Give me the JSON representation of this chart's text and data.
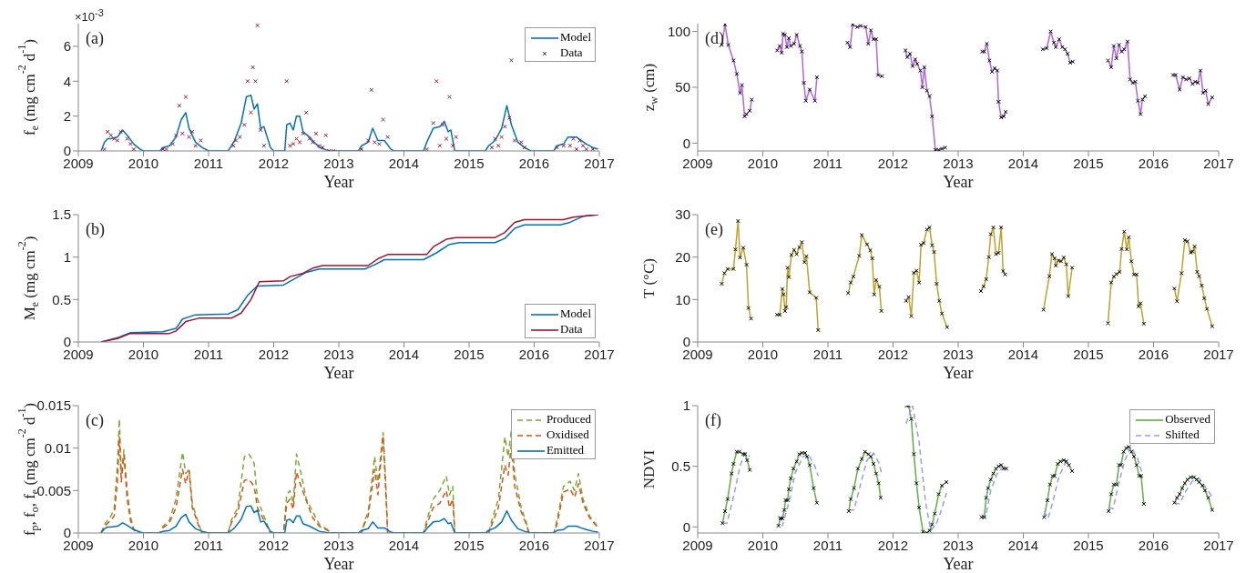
{
  "chart_data": [
    {
      "type": "line",
      "xlabel": "Year",
      "ylabel": "f$_{e}$ (mg cm$^{-2}$ d$^{-1}$)",
      "annotations": [
        "(a)",
        "×10$^{-3}$"
      ],
      "xlim": [
        2009,
        2017
      ],
      "xticks": [
        2009,
        2010,
        2011,
        2012,
        2013,
        2014,
        2015,
        2016,
        2017
      ],
      "ylim": [
        0,
        7.3
      ],
      "yticks": [
        0,
        2,
        4,
        6
      ],
      "legend": "top right",
      "series": [
        {
          "name": "Model",
          "color": "#0072bd",
          "x": [
            2009.35,
            2009.4,
            2009.45,
            2009.5,
            2009.6,
            2009.68,
            2009.75,
            2009.85,
            2009.95,
            2010.0,
            2010.25,
            2010.3,
            2010.4,
            2010.5,
            2010.58,
            2010.65,
            2010.7,
            2010.8,
            2010.9,
            2011.0,
            2011.3,
            2011.4,
            2011.5,
            2011.58,
            2011.65,
            2011.7,
            2011.75,
            2011.8,
            2011.85,
            2011.95,
            2012.0,
            2012.17,
            2012.2,
            2012.25,
            2012.3,
            2012.35,
            2012.4,
            2012.45,
            2012.55,
            2012.7,
            2012.85,
            2013.3,
            2013.35,
            2013.45,
            2013.52,
            2013.6,
            2013.7,
            2013.8,
            2013.85,
            2014.3,
            2014.35,
            2014.45,
            2014.55,
            2014.62,
            2014.68,
            2014.72,
            2014.78,
            2015.25,
            2015.3,
            2015.4,
            2015.5,
            2015.58,
            2015.65,
            2015.75,
            2015.85,
            2015.95,
            2016.3,
            2016.35,
            2016.45,
            2016.52,
            2016.65,
            2016.72,
            2016.8,
            2016.9,
            2016.98
          ],
          "values": [
            0,
            0.5,
            0.7,
            0.7,
            0.8,
            1.2,
            0.9,
            0.4,
            0.1,
            0,
            0,
            0.2,
            0.3,
            0.8,
            1.8,
            2.2,
            1.3,
            0.5,
            0.2,
            0,
            0,
            0.6,
            1.6,
            3.1,
            3.2,
            2.4,
            2.7,
            1.3,
            1.4,
            0.2,
            0,
            0,
            1.5,
            1.6,
            1.2,
            2,
            2,
            1.1,
            0.8,
            0.2,
            0,
            0,
            0.3,
            0.5,
            1.3,
            0.6,
            0.6,
            0.1,
            0,
            0,
            0.5,
            1.3,
            1.4,
            1.7,
            1.1,
            1.2,
            0,
            0,
            0.3,
            0.6,
            1.3,
            2.6,
            1.5,
            0.5,
            0.2,
            0,
            0,
            0.3,
            0.4,
            0.8,
            0.8,
            0.6,
            0.4,
            0.2,
            0.1
          ]
        },
        {
          "name": "Data",
          "type": "scatter",
          "marker": "cross",
          "color": "#a2142f",
          "x": [
            2009.4,
            2009.45,
            2009.5,
            2009.55,
            2009.6,
            2009.65,
            2009.75,
            2009.8,
            2009.85,
            2010.3,
            2010.35,
            2010.45,
            2010.5,
            2010.55,
            2010.6,
            2010.65,
            2010.7,
            2010.75,
            2010.8,
            2010.88,
            2011.38,
            2011.42,
            2011.48,
            2011.55,
            2011.6,
            2011.65,
            2011.68,
            2011.72,
            2011.75,
            2011.8,
            2011.85,
            2012.2,
            2012.25,
            2012.3,
            2012.35,
            2012.4,
            2012.45,
            2012.5,
            2012.55,
            2012.6,
            2012.65,
            2012.7,
            2012.75,
            2012.8,
            2012.85,
            2012.92,
            2013.35,
            2013.45,
            2013.5,
            2013.55,
            2013.62,
            2013.68,
            2013.75,
            2014.35,
            2014.45,
            2014.5,
            2014.55,
            2014.6,
            2014.65,
            2014.7,
            2014.75,
            2014.8,
            2015.35,
            2015.4,
            2015.45,
            2015.5,
            2015.55,
            2015.62,
            2015.65,
            2015.7,
            2015.8,
            2015.85,
            2016.35,
            2016.45,
            2016.55,
            2016.6,
            2016.65,
            2016.7,
            2016.75,
            2016.8,
            2016.9
          ],
          "values": [
            0.1,
            1.1,
            0.9,
            0.7,
            0.6,
            1.1,
            0.7,
            0.4,
            0.1,
            0.1,
            0.1,
            0.4,
            0.9,
            2.6,
            1,
            3.1,
            0.8,
            1.1,
            0.3,
            0.6,
            0.3,
            0.6,
            0.8,
            1.5,
            4,
            2.2,
            4.8,
            4,
            7.2,
            1.2,
            0.3,
            4,
            0.3,
            0.4,
            0.7,
            0.5,
            1,
            2.2,
            0.7,
            0.5,
            1,
            0.3,
            0.2,
            0.9,
            0,
            0,
            0.1,
            0.6,
            3.5,
            0.5,
            0.4,
            1.8,
            0.8,
            0.1,
            1.6,
            4,
            0.3,
            1.5,
            0.7,
            3.1,
            0.3,
            0.8,
            0.2,
            0.7,
            0.3,
            0.8,
            1.4,
            1.9,
            5.2,
            0.6,
            0.5,
            0.2,
            0.2,
            0.3,
            0.3,
            0.7,
            0.1,
            0.6,
            0.3,
            0.1,
            0.1
          ]
        }
      ]
    },
    {
      "type": "line",
      "xlabel": "Year",
      "ylabel": "z$_{w}$ (cm)",
      "annotations": [
        "(d)"
      ],
      "xlim": [
        2009,
        2017
      ],
      "xticks": [
        2009,
        2010,
        2011,
        2012,
        2013,
        2014,
        2015,
        2016,
        2017
      ],
      "ylim": [
        -7,
        107
      ],
      "yticks": [
        0,
        50,
        100
      ],
      "marker": "cross",
      "series": [
        {
          "color": "#b266dd",
          "x": [
            2009.37,
            2009.42,
            2009.47,
            2009.55,
            2009.6,
            2009.65,
            2009.68,
            2009.72,
            2009.75,
            2009.8,
            2009.83,
            2010.0,
            2010.22,
            2010.26,
            2010.29,
            2010.31,
            2010.34,
            2010.37,
            2010.4,
            2010.43,
            2010.48,
            2010.52,
            2010.57,
            2010.6,
            2010.63,
            2010.66,
            2010.72,
            2010.8,
            2010.83,
            2011.0,
            2011.3,
            2011.34,
            2011.38,
            2011.45,
            2011.5,
            2011.58,
            2011.62,
            2011.66,
            2011.7,
            2011.74,
            2011.77,
            2011.83,
            2012.0,
            2012.19,
            2012.22,
            2012.26,
            2012.3,
            2012.34,
            2012.37,
            2012.42,
            2012.45,
            2012.48,
            2012.52,
            2012.56,
            2012.6,
            2012.65,
            2012.7,
            2012.75,
            2012.8,
            2013.0,
            2013.37,
            2013.4,
            2013.44,
            2013.48,
            2013.52,
            2013.56,
            2013.6,
            2013.62,
            2013.66,
            2013.7,
            2013.73,
            2014.0,
            2014.3,
            2014.36,
            2014.42,
            2014.47,
            2014.5,
            2014.55,
            2014.6,
            2014.64,
            2014.68,
            2014.72,
            2014.76,
            2015.0,
            2015.3,
            2015.35,
            2015.39,
            2015.43,
            2015.47,
            2015.51,
            2015.55,
            2015.6,
            2015.64,
            2015.68,
            2015.72,
            2015.76,
            2015.8,
            2015.83,
            2015.87,
            2016.0,
            2016.3,
            2016.34,
            2016.4,
            2016.45,
            2016.5,
            2016.55,
            2016.6,
            2016.64,
            2016.68,
            2016.72,
            2016.76,
            2016.8,
            2016.84,
            2016.9
          ],
          "values": [
            88,
            106,
            88,
            74,
            62,
            45,
            52,
            24,
            26,
            29,
            39,
            null,
            83,
            87,
            81,
            98,
            97,
            86,
            94,
            87,
            89,
            97,
            87,
            82,
            54,
            38,
            48,
            38,
            59,
            null,
            90,
            86,
            106,
            104,
            105,
            104,
            89,
            101,
            93,
            93,
            61,
            60,
            null,
            83,
            77,
            80,
            69,
            75,
            71,
            65,
            50,
            68,
            47,
            42,
            24,
            -6,
            -6,
            -5,
            -4,
            null,
            82,
            82,
            89,
            74,
            64,
            67,
            65,
            37,
            23,
            24,
            28,
            null,
            84,
            85,
            100,
            90,
            86,
            93,
            86,
            84,
            80,
            72,
            73,
            null,
            74,
            68,
            87,
            76,
            88,
            82,
            84,
            91,
            57,
            54,
            55,
            38,
            26,
            39,
            42,
            null,
            61,
            61,
            48,
            59,
            57,
            58,
            53,
            55,
            54,
            65,
            45,
            47,
            35,
            41
          ]
        }
      ]
    },
    {
      "type": "line",
      "xlabel": "Year",
      "ylabel": "M$_{e}$ (mg cm$^{-2}$)",
      "annotations": [
        "(b)"
      ],
      "xlim": [
        2009,
        2017
      ],
      "xticks": [
        2009,
        2010,
        2011,
        2012,
        2013,
        2014,
        2015,
        2016,
        2017
      ],
      "ylim": [
        0,
        1.5
      ],
      "yticks": [
        0,
        0.5,
        1,
        1.5
      ],
      "legend": "bottom right",
      "series": [
        {
          "name": "Model",
          "color": "#0072bd",
          "x": [
            2009.35,
            2009.6,
            2009.8,
            2010.3,
            2010.5,
            2010.6,
            2010.8,
            2011.3,
            2011.45,
            2011.6,
            2011.75,
            2012.15,
            2012.5,
            2012.7,
            2013.4,
            2013.55,
            2013.7,
            2014.3,
            2014.5,
            2014.7,
            2014.85,
            2015.4,
            2015.55,
            2015.7,
            2015.85,
            2016.4,
            2016.55,
            2016.75,
            2016.98
          ],
          "values": [
            0,
            0.05,
            0.11,
            0.12,
            0.16,
            0.27,
            0.32,
            0.33,
            0.38,
            0.55,
            0.66,
            0.67,
            0.82,
            0.86,
            0.86,
            0.91,
            0.97,
            0.97,
            1.05,
            1.15,
            1.17,
            1.17,
            1.22,
            1.34,
            1.38,
            1.38,
            1.41,
            1.48,
            1.5
          ]
        },
        {
          "name": "Data",
          "color": "#a2142f",
          "x": [
            2009.35,
            2009.6,
            2009.8,
            2010.4,
            2010.5,
            2010.65,
            2010.85,
            2011.35,
            2011.5,
            2011.65,
            2011.78,
            2012.15,
            2012.25,
            2012.45,
            2012.6,
            2012.75,
            2013.45,
            2013.6,
            2013.75,
            2014.35,
            2014.45,
            2014.65,
            2014.8,
            2015.4,
            2015.55,
            2015.7,
            2015.85,
            2016.45,
            2016.6,
            2016.98
          ],
          "values": [
            0,
            0.04,
            0.1,
            0.1,
            0.13,
            0.24,
            0.28,
            0.28,
            0.34,
            0.5,
            0.71,
            0.72,
            0.77,
            0.81,
            0.87,
            0.9,
            0.9,
            0.98,
            1.03,
            1.03,
            1.12,
            1.21,
            1.23,
            1.23,
            1.29,
            1.41,
            1.44,
            1.44,
            1.47,
            1.5
          ]
        }
      ]
    },
    {
      "type": "line",
      "xlabel": "Year",
      "ylabel": "T (°C)",
      "annotations": [
        "(e)"
      ],
      "xlim": [
        2009,
        2017
      ],
      "xticks": [
        2009,
        2010,
        2011,
        2012,
        2013,
        2014,
        2015,
        2016,
        2017
      ],
      "ylim": [
        0,
        30
      ],
      "yticks": [
        0,
        10,
        20,
        30
      ],
      "marker": "cross",
      "series": [
        {
          "color": "#bfa22a",
          "x": [
            2009.37,
            2009.41,
            2009.46,
            2009.55,
            2009.58,
            2009.62,
            2009.65,
            2009.7,
            2009.75,
            2009.78,
            2009.82,
            2010.0,
            2010.22,
            2010.26,
            2010.3,
            2010.32,
            2010.34,
            2010.36,
            2010.38,
            2010.4,
            2010.44,
            2010.48,
            2010.52,
            2010.56,
            2010.6,
            2010.64,
            2010.67,
            2010.72,
            2010.82,
            2010.85,
            2011.0,
            2011.31,
            2011.35,
            2011.39,
            2011.48,
            2011.52,
            2011.6,
            2011.65,
            2011.68,
            2011.71,
            2011.74,
            2011.79,
            2011.82,
            2012.0,
            2012.2,
            2012.24,
            2012.28,
            2012.32,
            2012.36,
            2012.4,
            2012.43,
            2012.47,
            2012.52,
            2012.56,
            2012.6,
            2012.63,
            2012.67,
            2012.71,
            2012.75,
            2012.83,
            2013.0,
            2013.35,
            2013.39,
            2013.43,
            2013.47,
            2013.5,
            2013.54,
            2013.58,
            2013.62,
            2013.66,
            2013.69,
            2013.72,
            2014.0,
            2014.31,
            2014.4,
            2014.44,
            2014.48,
            2014.5,
            2014.54,
            2014.58,
            2014.62,
            2014.66,
            2014.69,
            2014.75,
            2015.0,
            2015.3,
            2015.35,
            2015.39,
            2015.43,
            2015.48,
            2015.51,
            2015.55,
            2015.59,
            2015.62,
            2015.66,
            2015.7,
            2015.74,
            2015.77,
            2015.8,
            2015.85,
            2016.0,
            2016.32,
            2016.36,
            2016.43,
            2016.48,
            2016.52,
            2016.57,
            2016.6,
            2016.63,
            2016.67,
            2016.7,
            2016.74,
            2016.78,
            2016.82,
            2016.9
          ],
          "values": [
            13.7,
            16.2,
            17.2,
            17.2,
            21.8,
            28.5,
            19.9,
            22.2,
            18.2,
            8,
            5.5,
            null,
            6.4,
            6.4,
            12.5,
            11.2,
            7.3,
            8.2,
            17.5,
            15.3,
            20.5,
            21.7,
            20.7,
            22.3,
            23.5,
            18.8,
            20.2,
            11.7,
            10.4,
            2.8,
            null,
            11.5,
            14,
            15.4,
            20.3,
            25.2,
            23,
            21.6,
            19.7,
            11.2,
            14.6,
            13,
            7.3,
            null,
            9.7,
            10.6,
            6.1,
            16.3,
            16.8,
            14,
            22.9,
            23.3,
            26.5,
            27,
            22.8,
            21.2,
            13.7,
            9.7,
            6.7,
            3.5,
            null,
            12,
            13.1,
            14.8,
            20,
            25.4,
            27,
            20.7,
            21,
            27,
            16.7,
            15.9,
            null,
            7.6,
            15.5,
            20.7,
            19.7,
            18,
            19.2,
            19,
            19.9,
            18.3,
            10.8,
            17.5,
            null,
            4.4,
            14,
            15.4,
            16,
            16.5,
            21.9,
            26,
            21.8,
            24.7,
            19,
            15.9,
            15.9,
            8.4,
            9.1,
            4.3,
            null,
            12.6,
            9.6,
            16.2,
            24,
            23.7,
            21.1,
            21.3,
            22.5,
            16.5,
            15.5,
            13.3,
            10.3,
            7.8,
            3.7
          ]
        }
      ]
    },
    {
      "type": "line",
      "xlabel": "Year",
      "ylabel": "f$_{p}$, f$_{o}$, f$_{e}$ (mg cm$^{-2}$ d$^{-1}$)",
      "annotations": [
        "(c)"
      ],
      "xlim": [
        2009,
        2017
      ],
      "xticks": [
        2009,
        2010,
        2011,
        2012,
        2013,
        2014,
        2015,
        2016,
        2017
      ],
      "ylim": [
        0,
        0.015
      ],
      "yticks": [
        0,
        0.005,
        0.01,
        0.015
      ],
      "legend": "top right",
      "series": [
        {
          "name": "Produced",
          "color": "#77ac30",
          "line_style": "dashed",
          "x": [
            2009.35,
            2009.4,
            2009.5,
            2009.55,
            2009.6,
            2009.63,
            2009.66,
            2009.7,
            2009.75,
            2009.8,
            2009.85,
            2009.9,
            2010.25,
            2010.3,
            2010.4,
            2010.5,
            2010.6,
            2010.65,
            2010.7,
            2010.75,
            2010.85,
            2010.9,
            2011.3,
            2011.35,
            2011.45,
            2011.55,
            2011.62,
            2011.7,
            2011.75,
            2011.85,
            2011.95,
            2012.15,
            2012.2,
            2012.25,
            2012.3,
            2012.35,
            2012.42,
            2012.5,
            2012.6,
            2012.7,
            2012.85,
            2012.88,
            2013.35,
            2013.4,
            2013.45,
            2013.55,
            2013.6,
            2013.68,
            2013.72,
            2013.75,
            2014.3,
            2014.35,
            2014.45,
            2014.55,
            2014.65,
            2014.7,
            2014.75,
            2014.78,
            2015.3,
            2015.35,
            2015.45,
            2015.55,
            2015.6,
            2015.65,
            2015.7,
            2015.8,
            2015.88,
            2015.92,
            2016.3,
            2016.35,
            2016.45,
            2016.55,
            2016.62,
            2016.68,
            2016.75,
            2016.85,
            2016.98
          ],
          "values": [
            0,
            0.001,
            0.002,
            0.0028,
            0.008,
            0.0134,
            0.007,
            0.0098,
            0.005,
            0.002,
            0.0005,
            0,
            0,
            0.0008,
            0.0015,
            0.004,
            0.0095,
            0.007,
            0.0075,
            0.0035,
            0.001,
            0,
            0,
            0.0015,
            0.003,
            0.009,
            0.0093,
            0.0082,
            0.004,
            0.002,
            0,
            0,
            0.0045,
            0.005,
            0.0035,
            0.0093,
            0.007,
            0.004,
            0.0025,
            0.001,
            0.0003,
            0,
            0,
            0.0015,
            0.0025,
            0.009,
            0.006,
            0.0118,
            0.006,
            0,
            0,
            0.0015,
            0.004,
            0.005,
            0.0067,
            0.0045,
            0.0055,
            0,
            0,
            0.0015,
            0.004,
            0.0113,
            0.009,
            0.0122,
            0.007,
            0.003,
            0.0012,
            0,
            0,
            0.0015,
            0.0055,
            0.0061,
            0.005,
            0.007,
            0.004,
            0.002,
            0.0007
          ]
        },
        {
          "name": "Oxidised",
          "color": "#d95319",
          "line_style": "dashed",
          "x": [
            2009.35,
            2009.4,
            2009.5,
            2009.55,
            2009.6,
            2009.63,
            2009.66,
            2009.7,
            2009.75,
            2009.8,
            2009.85,
            2009.9,
            2010.25,
            2010.3,
            2010.4,
            2010.5,
            2010.6,
            2010.65,
            2010.7,
            2010.75,
            2010.85,
            2010.9,
            2011.3,
            2011.35,
            2011.45,
            2011.55,
            2011.62,
            2011.7,
            2011.75,
            2011.85,
            2011.95,
            2012.15,
            2012.2,
            2012.25,
            2012.3,
            2012.35,
            2012.42,
            2012.5,
            2012.6,
            2012.7,
            2012.85,
            2012.88,
            2013.35,
            2013.4,
            2013.45,
            2013.55,
            2013.6,
            2013.68,
            2013.72,
            2013.75,
            2014.3,
            2014.35,
            2014.45,
            2014.55,
            2014.65,
            2014.7,
            2014.75,
            2014.78,
            2015.3,
            2015.35,
            2015.45,
            2015.55,
            2015.6,
            2015.65,
            2015.7,
            2015.8,
            2015.88,
            2015.92,
            2016.3,
            2016.35,
            2016.45,
            2016.55,
            2016.62,
            2016.68,
            2016.75,
            2016.85,
            2016.98
          ],
          "values": [
            0,
            0.0008,
            0.0015,
            0.002,
            0.006,
            0.0113,
            0.006,
            0.0092,
            0.004,
            0.0015,
            0.0004,
            0,
            0,
            0.0006,
            0.0012,
            0.003,
            0.0075,
            0.0058,
            0.0074,
            0.003,
            0.0008,
            0,
            0,
            0.0012,
            0.0025,
            0.0062,
            0.0063,
            0.0055,
            0.003,
            0.0015,
            0,
            0,
            0.0035,
            0.004,
            0.0028,
            0.0072,
            0.0055,
            0.0038,
            0.0018,
            0.0008,
            0.0002,
            0,
            0,
            0.0012,
            0.002,
            0.0075,
            0.0045,
            0.0115,
            0.005,
            0,
            0,
            0.001,
            0.003,
            0.0035,
            0.005,
            0.003,
            0.004,
            0,
            0,
            0.001,
            0.003,
            0.008,
            0.0068,
            0.0105,
            0.0055,
            0.0025,
            0.001,
            0,
            0,
            0.001,
            0.0048,
            0.0052,
            0.0042,
            0.0058,
            0.0035,
            0.0018,
            0.0006
          ]
        },
        {
          "name": "Emitted",
          "color": "#0072bd",
          "x": [
            2009.35,
            2009.4,
            2009.45,
            2009.5,
            2009.6,
            2009.68,
            2009.75,
            2009.85,
            2009.95,
            2010.0,
            2010.25,
            2010.3,
            2010.4,
            2010.5,
            2010.58,
            2010.65,
            2010.7,
            2010.8,
            2010.9,
            2011.0,
            2011.3,
            2011.4,
            2011.5,
            2011.58,
            2011.65,
            2011.7,
            2011.75,
            2011.8,
            2011.85,
            2011.95,
            2012.0,
            2012.17,
            2012.2,
            2012.25,
            2012.3,
            2012.35,
            2012.4,
            2012.45,
            2012.55,
            2012.7,
            2012.85,
            2013.3,
            2013.35,
            2013.45,
            2013.52,
            2013.6,
            2013.7,
            2013.8,
            2013.85,
            2014.3,
            2014.35,
            2014.45,
            2014.55,
            2014.62,
            2014.68,
            2014.72,
            2014.78,
            2015.25,
            2015.3,
            2015.4,
            2015.5,
            2015.58,
            2015.65,
            2015.75,
            2015.85,
            2015.95,
            2016.3,
            2016.35,
            2016.45,
            2016.52,
            2016.65,
            2016.72,
            2016.8,
            2016.9,
            2016.98
          ],
          "values": [
            0,
            0.0005,
            0.0007,
            0.0007,
            0.0008,
            0.0012,
            0.0009,
            0.0004,
            0.0001,
            0,
            0,
            0.0002,
            0.0003,
            0.0008,
            0.0018,
            0.0022,
            0.0013,
            0.0005,
            0.0002,
            0,
            0,
            0.0006,
            0.0016,
            0.0031,
            0.0032,
            0.0024,
            0.0027,
            0.0013,
            0.0014,
            0.0002,
            0,
            0,
            0.0015,
            0.0016,
            0.0012,
            0.002,
            0.002,
            0.0011,
            0.0008,
            0.0002,
            0,
            0,
            0.0003,
            0.0005,
            0.0013,
            0.0006,
            0.0006,
            0.0001,
            0,
            0,
            0.0005,
            0.0013,
            0.0014,
            0.0017,
            0.0011,
            0.0012,
            0,
            0,
            0.0003,
            0.0006,
            0.0013,
            0.0026,
            0.0015,
            0.0005,
            0.0002,
            0,
            0,
            0.0003,
            0.0004,
            0.0008,
            0.0008,
            0.0006,
            0.0004,
            0.0002,
            0.0001
          ]
        }
      ]
    },
    {
      "type": "line",
      "xlabel": "Year",
      "ylabel": "NDVI",
      "annotations": [
        "(f)"
      ],
      "xlim": [
        2009,
        2017
      ],
      "xticks": [
        2009,
        2010,
        2011,
        2012,
        2013,
        2014,
        2015,
        2016,
        2017
      ],
      "ylim": [
        -0.05,
        1
      ],
      "yticks": [
        0,
        0.5,
        1
      ],
      "legend": "top right",
      "series": [
        {
          "name": "Observed",
          "color": "#5fb040",
          "marker": "cross",
          "x": [
            2009.38,
            2009.42,
            2009.46,
            2009.52,
            2009.55,
            2009.6,
            2009.64,
            2009.7,
            2009.73,
            2009.76,
            2009.8,
            2010.0,
            2010.24,
            2010.27,
            2010.3,
            2010.33,
            2010.35,
            2010.38,
            2010.4,
            2010.43,
            2010.47,
            2010.52,
            2010.56,
            2010.6,
            2010.65,
            2010.68,
            2010.72,
            2010.78,
            2010.83,
            2011.0,
            2011.32,
            2011.35,
            2011.4,
            2011.46,
            2011.52,
            2011.57,
            2011.62,
            2011.66,
            2011.7,
            2011.74,
            2011.78,
            2011.81,
            2012.0,
            2012.21,
            2012.24,
            2012.28,
            2012.32,
            2012.36,
            2012.4,
            2012.46,
            2012.52,
            2012.56,
            2012.6,
            2012.64,
            2012.7,
            2012.75,
            2012.82,
            2013.0,
            2013.36,
            2013.4,
            2013.43,
            2013.46,
            2013.5,
            2013.54,
            2013.58,
            2013.62,
            2013.66,
            2013.7,
            2013.74,
            2014.0,
            2014.32,
            2014.37,
            2014.41,
            2014.45,
            2014.48,
            2014.53,
            2014.57,
            2014.62,
            2014.66,
            2014.7,
            2014.75,
            2015.0,
            2015.31,
            2015.35,
            2015.39,
            2015.43,
            2015.47,
            2015.5,
            2015.54,
            2015.58,
            2015.62,
            2015.66,
            2015.7,
            2015.74,
            2015.78,
            2015.81,
            2015.85,
            2016.0,
            2016.32,
            2016.36,
            2016.4,
            2016.44,
            2016.48,
            2016.52,
            2016.57,
            2016.62,
            2016.66,
            2016.7,
            2016.75,
            2016.79,
            2016.84,
            2016.9
          ],
          "values": [
            0.03,
            0.13,
            0.23,
            0.44,
            0.52,
            0.62,
            0.62,
            0.6,
            0.6,
            0.55,
            0.47,
            null,
            0.01,
            0.07,
            0.07,
            0.14,
            0.22,
            0.22,
            0.31,
            0.4,
            0.48,
            0.54,
            0.6,
            0.61,
            0.61,
            0.58,
            0.51,
            0.32,
            0.2,
            null,
            0.13,
            0.23,
            0.32,
            0.48,
            0.56,
            0.62,
            0.6,
            0.58,
            0.52,
            0.44,
            0.36,
            0.24,
            null,
            1,
            1,
            0.89,
            0.6,
            0.36,
            0.16,
            -0.04,
            -0.05,
            -0.03,
            0.02,
            0.11,
            0.27,
            0.34,
            0.37,
            null,
            0.08,
            0.08,
            0.24,
            0.32,
            0.39,
            0.44,
            0.48,
            0.5,
            0.51,
            0.48,
            0.48,
            null,
            0.08,
            0.22,
            0.35,
            0.42,
            0.42,
            0.52,
            0.54,
            0.55,
            0.54,
            0.51,
            0.46,
            null,
            0.13,
            0.27,
            0.35,
            0.35,
            0.51,
            0.51,
            0.62,
            0.65,
            0.66,
            0.62,
            0.58,
            0.51,
            0.42,
            0.42,
            0.19,
            null,
            0.2,
            0.24,
            0.27,
            0.32,
            0.36,
            0.39,
            0.41,
            0.41,
            0.39,
            0.37,
            0.34,
            0.3,
            0.24,
            0.14
          ]
        },
        {
          "name": "Shifted",
          "color": "#9999ff",
          "line_style": "dashed",
          "x": [
            2009.38,
            2009.45,
            2009.55,
            2009.65,
            2009.72,
            2009.8,
            2010.0,
            2010.24,
            2010.3,
            2010.4,
            2010.5,
            2010.62,
            2010.7,
            2010.8,
            2010.85,
            2011.0,
            2011.32,
            2011.4,
            2011.5,
            2011.6,
            2011.7,
            2011.78,
            2011.82,
            2012.0,
            2012.2,
            2012.3,
            2012.4,
            2012.5,
            2012.58,
            2012.66,
            2012.75,
            2012.82,
            2013.0,
            2013.36,
            2013.42,
            2013.5,
            2013.6,
            2013.7,
            2013.74,
            2014.0,
            2014.32,
            2014.38,
            2014.45,
            2014.55,
            2014.65,
            2014.73,
            2015.0,
            2015.31,
            2015.38,
            2015.46,
            2015.56,
            2015.65,
            2015.75,
            2015.82,
            2016.0,
            2016.32,
            2016.4,
            2016.5,
            2016.6,
            2016.7,
            2016.78,
            2016.9
          ],
          "values": [
            0.03,
            0.03,
            0.25,
            0.5,
            0.61,
            0.58,
            null,
            0.09,
            0.01,
            0.2,
            0.45,
            0.58,
            0.6,
            0.5,
            0.42,
            null,
            0.14,
            0.14,
            0.35,
            0.55,
            0.61,
            0.53,
            0.45,
            null,
            0.85,
            1,
            0.7,
            0.2,
            -0.03,
            0.02,
            0.15,
            0.28,
            null,
            0.1,
            0.08,
            0.3,
            0.44,
            0.5,
            0.49,
            null,
            0.13,
            0.07,
            0.2,
            0.42,
            0.53,
            0.53,
            null,
            0.16,
            0.15,
            0.35,
            0.55,
            0.66,
            0.57,
            0.45,
            null,
            0.2,
            0.19,
            0.3,
            0.38,
            0.4,
            0.34,
            0.25
          ]
        }
      ]
    }
  ]
}
